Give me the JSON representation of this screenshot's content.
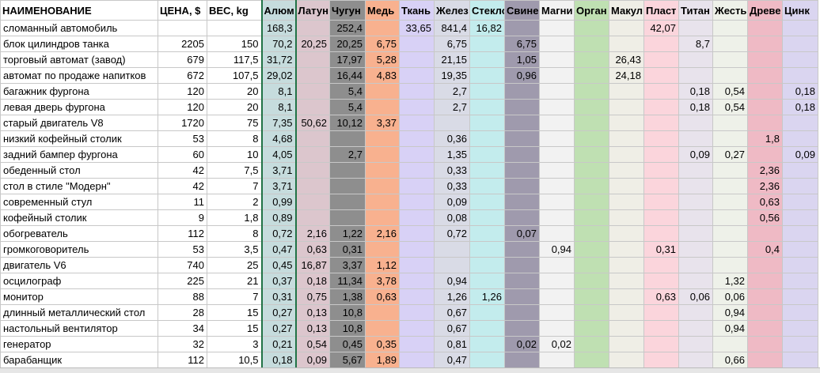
{
  "table": {
    "header": [
      "НАИМЕНОВАНИЕ",
      "ЦЕНА, $",
      "ВЕС, kg",
      "Алюм",
      "Латун",
      "Чугун",
      "Медь",
      "Ткань",
      "Желез",
      "Стекло",
      "Свине",
      "Магни",
      "Орган",
      "Макул",
      "Пласт",
      "Титан",
      "Жесть",
      "Древе",
      "Цинк"
    ],
    "rows": [
      [
        "сломанный автомобиль",
        null,
        null,
        "168,3",
        null,
        "252,4",
        null,
        "33,65",
        "841,4",
        "16,82",
        null,
        null,
        null,
        null,
        "42,07",
        null,
        null,
        null,
        null
      ],
      [
        "блок цилиндров танка",
        "2205",
        "150",
        "70,2",
        "20,25",
        "20,25",
        "6,75",
        null,
        "6,75",
        null,
        "6,75",
        null,
        null,
        null,
        null,
        "8,7",
        null,
        null,
        null
      ],
      [
        "торговый автомат (завод)",
        "679",
        "117,5",
        "31,72",
        null,
        "17,97",
        "5,28",
        null,
        "21,15",
        null,
        "1,05",
        null,
        null,
        "26,43",
        null,
        null,
        null,
        null,
        null
      ],
      [
        "автомат по продаже напитков",
        "672",
        "107,5",
        "29,02",
        null,
        "16,44",
        "4,83",
        null,
        "19,35",
        null,
        "0,96",
        null,
        null,
        "24,18",
        null,
        null,
        null,
        null,
        null
      ],
      [
        "багажник фургона",
        "120",
        "20",
        "8,1",
        null,
        "5,4",
        null,
        null,
        "2,7",
        null,
        null,
        null,
        null,
        null,
        null,
        "0,18",
        "0,54",
        null,
        "0,18"
      ],
      [
        "левая дверь фургона",
        "120",
        "20",
        "8,1",
        null,
        "5,4",
        null,
        null,
        "2,7",
        null,
        null,
        null,
        null,
        null,
        null,
        "0,18",
        "0,54",
        null,
        "0,18"
      ],
      [
        "старый двигатель V8",
        "1720",
        "75",
        "7,35",
        "50,62",
        "10,12",
        "3,37",
        null,
        null,
        null,
        null,
        null,
        null,
        null,
        null,
        null,
        null,
        null,
        null
      ],
      [
        "низкий кофейный столик",
        "53",
        "8",
        "4,68",
        null,
        null,
        null,
        null,
        "0,36",
        null,
        null,
        null,
        null,
        null,
        null,
        null,
        null,
        "1,8",
        null
      ],
      [
        "задний бампер фургона",
        "60",
        "10",
        "4,05",
        null,
        "2,7",
        null,
        null,
        "1,35",
        null,
        null,
        null,
        null,
        null,
        null,
        "0,09",
        "0,27",
        null,
        "0,09"
      ],
      [
        "обеденный стол",
        "42",
        "7,5",
        "3,71",
        null,
        null,
        null,
        null,
        "0,33",
        null,
        null,
        null,
        null,
        null,
        null,
        null,
        null,
        "2,36",
        null
      ],
      [
        "стол в стиле \"Модерн\"",
        "42",
        "7",
        "3,71",
        null,
        null,
        null,
        null,
        "0,33",
        null,
        null,
        null,
        null,
        null,
        null,
        null,
        null,
        "2,36",
        null
      ],
      [
        "современный стул",
        "11",
        "2",
        "0,99",
        null,
        null,
        null,
        null,
        "0,09",
        null,
        null,
        null,
        null,
        null,
        null,
        null,
        null,
        "0,63",
        null
      ],
      [
        "кофейный столик",
        "9",
        "1,8",
        "0,89",
        null,
        null,
        null,
        null,
        "0,08",
        null,
        null,
        null,
        null,
        null,
        null,
        null,
        null,
        "0,56",
        null
      ],
      [
        "обогреватель",
        "112",
        "8",
        "0,72",
        "2,16",
        "1,22",
        "2,16",
        null,
        "0,72",
        null,
        "0,07",
        null,
        null,
        null,
        null,
        null,
        null,
        null,
        null
      ],
      [
        "громкоговоритель",
        "53",
        "3,5",
        "0,47",
        "0,63",
        "0,31",
        null,
        null,
        null,
        null,
        null,
        "0,94",
        null,
        null,
        "0,31",
        null,
        null,
        "0,4",
        null
      ],
      [
        "двигатель V6",
        "740",
        "25",
        "0,45",
        "16,87",
        "3,37",
        "1,12",
        null,
        null,
        null,
        null,
        null,
        null,
        null,
        null,
        null,
        null,
        null,
        null
      ],
      [
        "осцилограф",
        "225",
        "21",
        "0,37",
        "0,18",
        "11,34",
        "3,78",
        null,
        "0,94",
        null,
        null,
        null,
        null,
        null,
        null,
        null,
        "1,32",
        null,
        null
      ],
      [
        "монитор",
        "88",
        "7",
        "0,31",
        "0,75",
        "1,38",
        "0,63",
        null,
        "1,26",
        "1,26",
        null,
        null,
        null,
        null,
        "0,63",
        "0,06",
        "0,06",
        null,
        null
      ],
      [
        "длинный металлический стол",
        "28",
        "15",
        "0,27",
        "0,13",
        "10,8",
        null,
        null,
        "0,67",
        null,
        null,
        null,
        null,
        null,
        null,
        null,
        "0,94",
        null,
        null
      ],
      [
        "настольный вентилятор",
        "34",
        "15",
        "0,27",
        "0,13",
        "10,8",
        null,
        null,
        "0,67",
        null,
        null,
        null,
        null,
        null,
        null,
        null,
        "0,94",
        null,
        null
      ],
      [
        "генератор",
        "32",
        "3",
        "0,21",
        "0,54",
        "0,45",
        "0,35",
        null,
        "0,81",
        null,
        "0,02",
        "0,02",
        null,
        null,
        null,
        null,
        null,
        null,
        null
      ],
      [
        "барабанщик",
        "112",
        "10,5",
        "0,18",
        "0,09",
        "5,67",
        "1,89",
        null,
        "0,47",
        null,
        null,
        null,
        null,
        null,
        null,
        null,
        "0,66",
        null,
        null
      ]
    ]
  }
}
